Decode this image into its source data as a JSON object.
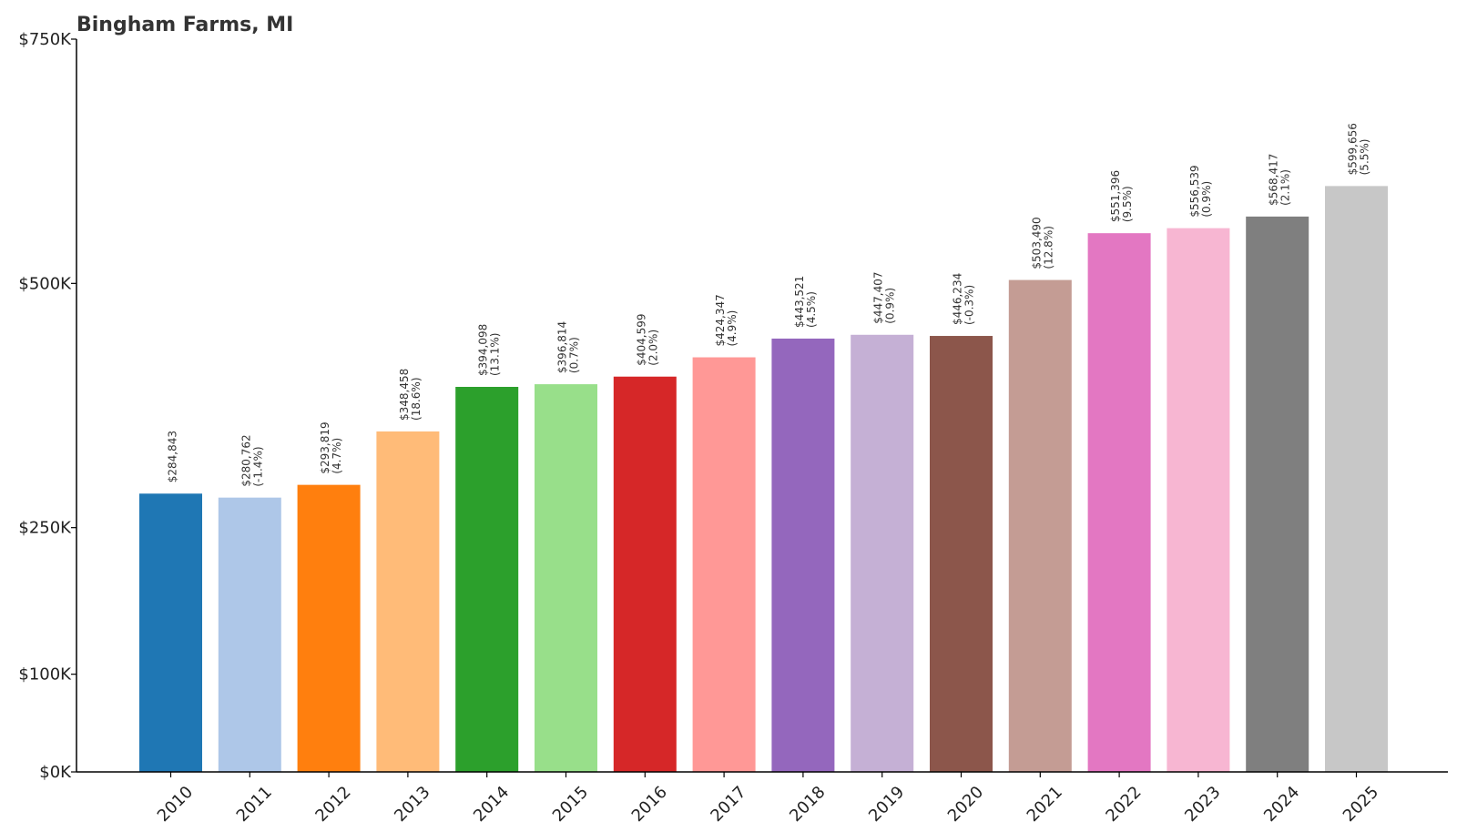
{
  "chart_data": {
    "type": "bar",
    "title": "Bingham Farms, MI",
    "xlabel": "",
    "ylabel": "",
    "ylim": [
      0,
      750000
    ],
    "grid": false,
    "legend": "none",
    "y_ticks": [
      {
        "value": 0,
        "label": "$0K"
      },
      {
        "value": 100000,
        "label": "$100K"
      },
      {
        "value": 250000,
        "label": "$250K"
      },
      {
        "value": 500000,
        "label": "$500K"
      },
      {
        "value": 750000,
        "label": "$750K"
      }
    ],
    "categories": [
      "2010",
      "2011",
      "2012",
      "2013",
      "2014",
      "2015",
      "2016",
      "2017",
      "2018",
      "2019",
      "2020",
      "2021",
      "2022",
      "2023",
      "2024",
      "2025"
    ],
    "values": [
      284843,
      280762,
      293819,
      348458,
      394098,
      396814,
      404599,
      424347,
      443521,
      447407,
      446234,
      503490,
      551396,
      556539,
      568417,
      599656
    ],
    "value_labels": [
      "$284,843",
      "$280,762",
      "$293,819",
      "$348,458",
      "$394,098",
      "$396,814",
      "$404,599",
      "$424,347",
      "$443,521",
      "$447,407",
      "$446,234",
      "$503,490",
      "$551,396",
      "$556,539",
      "$568,417",
      "$599,656"
    ],
    "change_labels": [
      "",
      "(-1.4%)",
      "(4.7%)",
      "(18.6%)",
      "(13.1%)",
      "(0.7%)",
      "(2.0%)",
      "(4.9%)",
      "(4.5%)",
      "(0.9%)",
      "(-0.3%)",
      "(12.8%)",
      "(9.5%)",
      "(0.9%)",
      "(2.1%)",
      "(5.5%)"
    ],
    "colors": [
      "#1f77b4",
      "#aec7e8",
      "#ff7f0e",
      "#ffbb78",
      "#2ca02c",
      "#98df8a",
      "#d62728",
      "#ff9896",
      "#9467bd",
      "#c5b0d5",
      "#8c564b",
      "#c49c94",
      "#e377c2",
      "#f7b6d2",
      "#7f7f7f",
      "#c7c7c7"
    ]
  }
}
